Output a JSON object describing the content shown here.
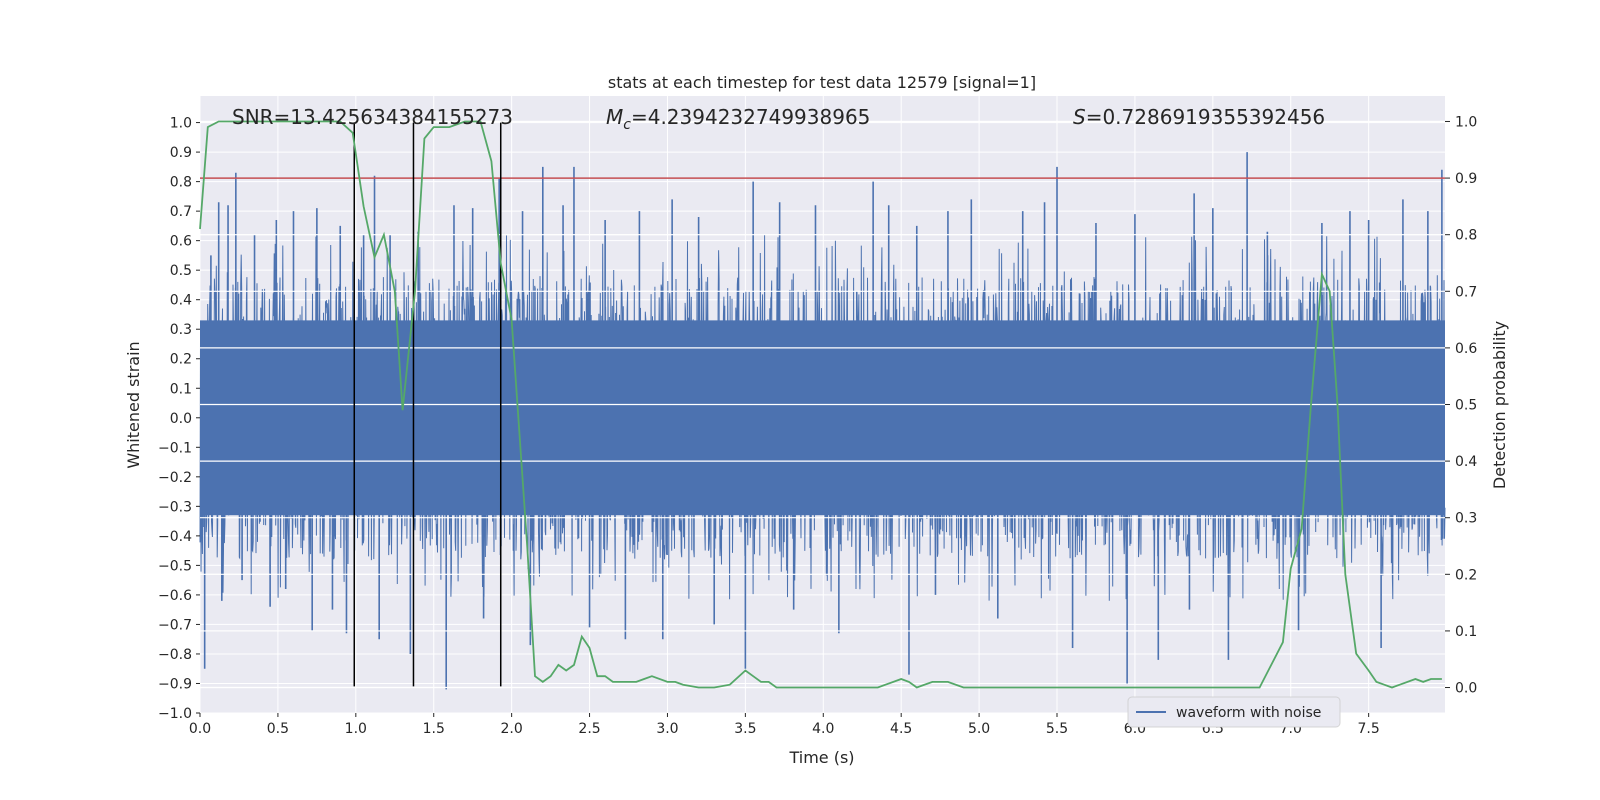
{
  "chart_data": {
    "type": "line",
    "title": "stats at each timestep for test data 12579 [signal=1]",
    "xlabel": "Time (s)",
    "ylabel": "Whitened strain",
    "y2label": "Detection probability",
    "xlim": [
      0,
      7.99
    ],
    "ylim": [
      -1.0,
      1.09
    ],
    "y2lim": [
      -0.045,
      1.045
    ],
    "xticks": [
      0.0,
      0.5,
      1.0,
      1.5,
      2.0,
      2.5,
      3.0,
      3.5,
      4.0,
      4.5,
      5.0,
      5.5,
      6.0,
      6.5,
      7.0,
      7.5
    ],
    "yticks": [
      -1.0,
      -0.9,
      -0.8,
      -0.7,
      -0.6,
      -0.5,
      -0.4,
      -0.3,
      -0.2,
      -0.1,
      0.0,
      0.1,
      0.2,
      0.3,
      0.4,
      0.5,
      0.6,
      0.7,
      0.8,
      0.9,
      1.0
    ],
    "y2ticks": [
      0.0,
      0.1,
      0.2,
      0.3,
      0.4,
      0.5,
      0.6,
      0.7,
      0.8,
      0.9,
      1.0
    ],
    "annotations": {
      "snr": "SNR=13.425634384155273",
      "mc_symbol": "M",
      "mc_sub": "c",
      "mc_value": "=4.2394232749938965",
      "s_symbol": "S",
      "s_value": "=0.7286919355392456"
    },
    "threshold": {
      "axis": "y2",
      "value": 0.9,
      "color": "#c44e52"
    },
    "vlines": [
      {
        "x": 0.99,
        "ymin": -0.91,
        "ymax": 1.0
      },
      {
        "x": 1.37,
        "ymin": -0.91,
        "ymax": 1.0
      },
      {
        "x": 1.93,
        "ymin": -0.91,
        "ymax": 1.0
      }
    ],
    "series": [
      {
        "name": "waveform with noise",
        "axis": "y",
        "color": "#4c72b0",
        "style": "dense-noise",
        "core_amplitude": 0.33,
        "envelope_spikes": [
          [
            0.03,
            -0.85
          ],
          [
            0.07,
            0.55
          ],
          [
            0.12,
            0.73
          ],
          [
            0.14,
            -0.62
          ],
          [
            0.18,
            0.72
          ],
          [
            0.23,
            0.83
          ],
          [
            0.27,
            -0.55
          ],
          [
            0.35,
            0.62
          ],
          [
            0.45,
            -0.64
          ],
          [
            0.49,
            0.67
          ],
          [
            0.55,
            -0.58
          ],
          [
            0.6,
            0.7
          ],
          [
            0.72,
            -0.72
          ],
          [
            0.75,
            0.71
          ],
          [
            0.85,
            -0.65
          ],
          [
            0.9,
            0.65
          ],
          [
            0.94,
            -0.73
          ],
          [
            1.05,
            0.62
          ],
          [
            1.12,
            0.82
          ],
          [
            1.15,
            -0.75
          ],
          [
            1.22,
            0.62
          ],
          [
            1.35,
            -0.8
          ],
          [
            1.4,
            0.63
          ],
          [
            1.58,
            -0.92
          ],
          [
            1.63,
            0.72
          ],
          [
            1.75,
            0.71
          ],
          [
            1.82,
            -0.68
          ],
          [
            1.92,
            0.81
          ],
          [
            2.07,
            0.7
          ],
          [
            2.12,
            -0.77
          ],
          [
            2.2,
            0.85
          ],
          [
            2.33,
            0.72
          ],
          [
            2.4,
            0.85
          ],
          [
            2.5,
            -0.71
          ],
          [
            2.6,
            0.67
          ],
          [
            2.73,
            -0.75
          ],
          [
            2.82,
            0.7
          ],
          [
            2.97,
            -0.75
          ],
          [
            3.03,
            0.74
          ],
          [
            3.2,
            0.68
          ],
          [
            3.3,
            -0.7
          ],
          [
            3.5,
            -0.85
          ],
          [
            3.55,
            0.8
          ],
          [
            3.72,
            0.73
          ],
          [
            3.81,
            -0.65
          ],
          [
            3.95,
            0.72
          ],
          [
            4.1,
            -0.73
          ],
          [
            4.32,
            0.8
          ],
          [
            4.42,
            0.72
          ],
          [
            4.55,
            -0.87
          ],
          [
            4.6,
            0.65
          ],
          [
            4.72,
            -0.6
          ],
          [
            4.8,
            0.7
          ],
          [
            4.95,
            0.74
          ],
          [
            5.12,
            -0.68
          ],
          [
            5.28,
            0.7
          ],
          [
            5.42,
            0.73
          ],
          [
            5.5,
            0.85
          ],
          [
            5.6,
            -0.78
          ],
          [
            5.75,
            0.66
          ],
          [
            5.95,
            -0.9
          ],
          [
            6.0,
            0.69
          ],
          [
            6.15,
            -0.82
          ],
          [
            6.35,
            -0.65
          ],
          [
            6.38,
            0.76
          ],
          [
            6.5,
            0.71
          ],
          [
            6.6,
            -0.82
          ],
          [
            6.72,
            0.9
          ],
          [
            6.85,
            0.63
          ],
          [
            7.05,
            -0.72
          ],
          [
            7.2,
            0.66
          ],
          [
            7.38,
            0.7
          ],
          [
            7.5,
            0.67
          ],
          [
            7.58,
            -0.78
          ],
          [
            7.72,
            0.74
          ],
          [
            7.88,
            0.7
          ],
          [
            7.97,
            0.84
          ]
        ]
      },
      {
        "name": "detection probability",
        "axis": "y2",
        "color": "#55a868",
        "x": [
          0.0,
          0.05,
          0.12,
          0.25,
          0.5,
          0.75,
          0.9,
          0.98,
          1.05,
          1.12,
          1.18,
          1.25,
          1.3,
          1.38,
          1.44,
          1.5,
          1.6,
          1.7,
          1.8,
          1.87,
          1.93,
          2.0,
          2.05,
          2.1,
          2.15,
          2.2,
          2.25,
          2.3,
          2.35,
          2.4,
          2.45,
          2.5,
          2.55,
          2.6,
          2.65,
          2.72,
          2.8,
          2.85,
          2.9,
          3.0,
          3.05,
          3.1,
          3.2,
          3.3,
          3.4,
          3.5,
          3.55,
          3.6,
          3.65,
          3.7,
          3.8,
          3.9,
          4.0,
          4.2,
          4.35,
          4.5,
          4.55,
          4.6,
          4.7,
          4.8,
          4.9,
          4.95,
          5.0,
          5.2,
          5.5,
          5.7,
          5.8,
          6.0,
          6.3,
          6.5,
          6.7,
          6.8,
          6.95,
          7.0,
          7.07,
          7.13,
          7.2,
          7.25,
          7.3,
          7.35,
          7.42,
          7.5,
          7.55,
          7.6,
          7.65,
          7.7,
          7.8,
          7.85,
          7.9,
          7.97
        ],
        "y": [
          0.81,
          0.99,
          1.0,
          1.0,
          1.0,
          1.0,
          1.0,
          0.98,
          0.85,
          0.76,
          0.8,
          0.7,
          0.49,
          0.7,
          0.97,
          0.99,
          0.99,
          1.0,
          1.0,
          0.93,
          0.75,
          0.65,
          0.45,
          0.25,
          0.02,
          0.01,
          0.02,
          0.04,
          0.03,
          0.04,
          0.09,
          0.07,
          0.02,
          0.02,
          0.01,
          0.01,
          0.01,
          0.015,
          0.02,
          0.01,
          0.01,
          0.005,
          0.0,
          0.0,
          0.005,
          0.03,
          0.02,
          0.01,
          0.01,
          0.0,
          0.0,
          0.0,
          0.0,
          0.0,
          0.0,
          0.015,
          0.01,
          0.0,
          0.01,
          0.01,
          0.0,
          0.0,
          0.0,
          0.0,
          0.0,
          0.0,
          0.0,
          0.0,
          0.0,
          0.0,
          0.0,
          0.0,
          0.08,
          0.21,
          0.28,
          0.5,
          0.73,
          0.7,
          0.5,
          0.2,
          0.06,
          0.03,
          0.01,
          0.005,
          0.0,
          0.005,
          0.015,
          0.01,
          0.015,
          0.015
        ]
      }
    ],
    "legend": {
      "entries": [
        "waveform with noise"
      ],
      "placement": "lower-right"
    },
    "grid": true,
    "colors": {
      "background": "#eaeaf2",
      "grid": "#ffffff",
      "vline": "#000000"
    }
  }
}
